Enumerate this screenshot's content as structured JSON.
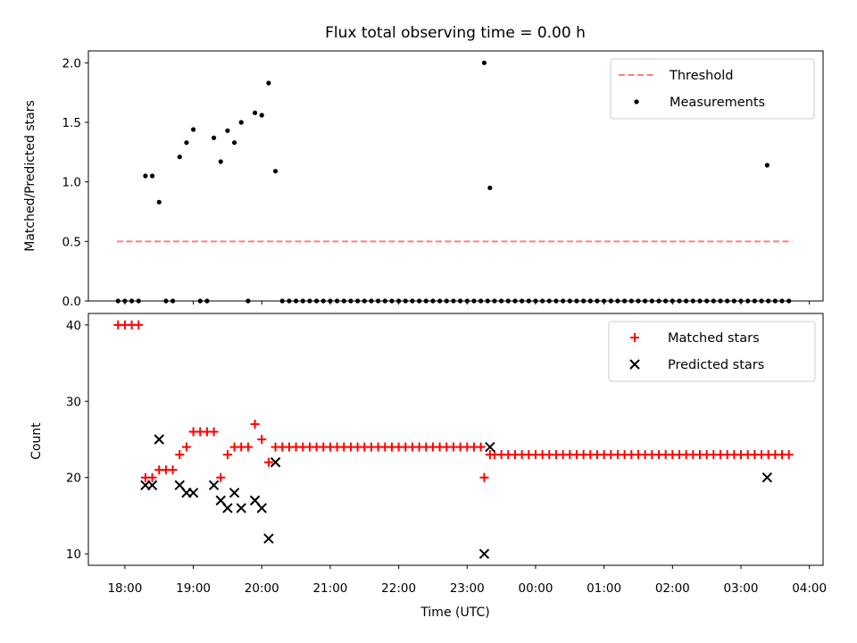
{
  "chart_data": [
    {
      "type": "scatter",
      "title": "Flux total observing time = 0.00 h",
      "xlabel": "",
      "ylabel": "Matched/Predicted stars",
      "xlim": [
        "17:28",
        "04:12"
      ],
      "ylim": [
        0,
        2.1
      ],
      "yticks": [
        0.0,
        0.5,
        1.0,
        1.5,
        2.0
      ],
      "grid": false,
      "legend_position": "top-right",
      "series": [
        {
          "name": "Threshold",
          "kind": "line",
          "style": "dashed",
          "color": "#ff7f7f",
          "points": [
            {
              "x": "17:53",
              "y": 0.5
            },
            {
              "x": "03:45",
              "y": 0.5
            }
          ]
        },
        {
          "name": "Measurements",
          "kind": "scatter",
          "marker": "dot",
          "color": "#000000",
          "points": [
            {
              "x": "17:54",
              "y": 0
            },
            {
              "x": "18:00",
              "y": 0
            },
            {
              "x": "18:06",
              "y": 0
            },
            {
              "x": "18:12",
              "y": 0
            },
            {
              "x": "18:18",
              "y": 1.05
            },
            {
              "x": "18:24",
              "y": 1.05
            },
            {
              "x": "18:30",
              "y": 0.83
            },
            {
              "x": "18:36",
              "y": 0
            },
            {
              "x": "18:42",
              "y": 0
            },
            {
              "x": "18:48",
              "y": 1.21
            },
            {
              "x": "18:54",
              "y": 1.33
            },
            {
              "x": "19:00",
              "y": 1.44
            },
            {
              "x": "19:06",
              "y": 0
            },
            {
              "x": "19:12",
              "y": 0
            },
            {
              "x": "19:18",
              "y": 1.37
            },
            {
              "x": "19:24",
              "y": 1.17
            },
            {
              "x": "19:30",
              "y": 1.43
            },
            {
              "x": "19:36",
              "y": 1.33
            },
            {
              "x": "19:42",
              "y": 1.5
            },
            {
              "x": "19:48",
              "y": 0
            },
            {
              "x": "19:54",
              "y": 1.58
            },
            {
              "x": "20:00",
              "y": 1.56
            },
            {
              "x": "20:06",
              "y": 1.83
            },
            {
              "x": "20:12",
              "y": 1.09
            },
            {
              "x": "20:18",
              "y": 0
            },
            {
              "x": "20:24",
              "y": 0
            },
            {
              "x": "20:30",
              "y": 0
            },
            {
              "x": "20:36",
              "y": 0
            },
            {
              "x": "20:42",
              "y": 0
            },
            {
              "x": "20:48",
              "y": 0
            },
            {
              "x": "20:54",
              "y": 0
            },
            {
              "x": "21:00",
              "y": 0
            },
            {
              "x": "21:06",
              "y": 0
            },
            {
              "x": "21:12",
              "y": 0
            },
            {
              "x": "21:18",
              "y": 0
            },
            {
              "x": "21:24",
              "y": 0
            },
            {
              "x": "21:30",
              "y": 0
            },
            {
              "x": "21:36",
              "y": 0
            },
            {
              "x": "21:42",
              "y": 0
            },
            {
              "x": "21:48",
              "y": 0
            },
            {
              "x": "21:54",
              "y": 0
            },
            {
              "x": "22:00",
              "y": 0
            },
            {
              "x": "22:06",
              "y": 0
            },
            {
              "x": "22:12",
              "y": 0
            },
            {
              "x": "22:18",
              "y": 0
            },
            {
              "x": "22:24",
              "y": 0
            },
            {
              "x": "22:30",
              "y": 0
            },
            {
              "x": "22:36",
              "y": 0
            },
            {
              "x": "22:42",
              "y": 0
            },
            {
              "x": "22:48",
              "y": 0
            },
            {
              "x": "22:54",
              "y": 0
            },
            {
              "x": "23:00",
              "y": 0
            },
            {
              "x": "23:06",
              "y": 0
            },
            {
              "x": "23:12",
              "y": 0
            },
            {
              "x": "23:18",
              "y": 0
            },
            {
              "x": "23:24",
              "y": 0
            },
            {
              "x": "23:30",
              "y": 0
            },
            {
              "x": "23:36",
              "y": 0
            },
            {
              "x": "23:42",
              "y": 0
            },
            {
              "x": "23:48",
              "y": 0
            },
            {
              "x": "23:54",
              "y": 0
            },
            {
              "x": "00:00",
              "y": 0
            },
            {
              "x": "00:06",
              "y": 0
            },
            {
              "x": "00:12",
              "y": 0
            },
            {
              "x": "00:18",
              "y": 0
            },
            {
              "x": "00:24",
              "y": 0
            },
            {
              "x": "00:30",
              "y": 0
            },
            {
              "x": "00:36",
              "y": 0
            },
            {
              "x": "00:42",
              "y": 0
            },
            {
              "x": "00:48",
              "y": 0
            },
            {
              "x": "00:54",
              "y": 0
            },
            {
              "x": "01:00",
              "y": 0
            },
            {
              "x": "01:06",
              "y": 0
            },
            {
              "x": "01:12",
              "y": 0
            },
            {
              "x": "01:18",
              "y": 0
            },
            {
              "x": "01:24",
              "y": 0
            },
            {
              "x": "01:30",
              "y": 0
            },
            {
              "x": "01:36",
              "y": 0
            },
            {
              "x": "01:42",
              "y": 0
            },
            {
              "x": "01:48",
              "y": 0
            },
            {
              "x": "01:54",
              "y": 0
            },
            {
              "x": "02:00",
              "y": 0
            },
            {
              "x": "02:06",
              "y": 0
            },
            {
              "x": "02:12",
              "y": 0
            },
            {
              "x": "02:18",
              "y": 0
            },
            {
              "x": "02:24",
              "y": 0
            },
            {
              "x": "02:30",
              "y": 0
            },
            {
              "x": "02:36",
              "y": 0
            },
            {
              "x": "02:42",
              "y": 0
            },
            {
              "x": "02:48",
              "y": 0
            },
            {
              "x": "02:54",
              "y": 0
            },
            {
              "x": "03:00",
              "y": 0
            },
            {
              "x": "03:06",
              "y": 0
            },
            {
              "x": "03:12",
              "y": 0
            },
            {
              "x": "03:18",
              "y": 0
            },
            {
              "x": "03:24",
              "y": 0
            },
            {
              "x": "03:30",
              "y": 0
            },
            {
              "x": "03:36",
              "y": 0
            },
            {
              "x": "03:42",
              "y": 0
            },
            {
              "x": "23:15",
              "y": 2.0
            },
            {
              "x": "23:20",
              "y": 0.95
            },
            {
              "x": "03:23",
              "y": 1.14
            }
          ]
        }
      ]
    },
    {
      "type": "scatter",
      "title": "",
      "xlabel": "Time (UTC)",
      "ylabel": "Count",
      "xlim": [
        "17:28",
        "04:12"
      ],
      "ylim": [
        8.5,
        41.5
      ],
      "yticks": [
        10,
        20,
        30,
        40
      ],
      "xticks": [
        "18:00",
        "19:00",
        "20:00",
        "21:00",
        "22:00",
        "23:00",
        "00:00",
        "01:00",
        "02:00",
        "03:00",
        "04:00"
      ],
      "grid": false,
      "legend_position": "top-right",
      "series": [
        {
          "name": "Matched stars",
          "kind": "scatter",
          "marker": "plus",
          "color": "#ff0000",
          "points": [
            {
              "x": "17:54",
              "y": 40
            },
            {
              "x": "18:00",
              "y": 40
            },
            {
              "x": "18:06",
              "y": 40
            },
            {
              "x": "18:12",
              "y": 40
            },
            {
              "x": "18:18",
              "y": 20
            },
            {
              "x": "18:24",
              "y": 20
            },
            {
              "x": "18:30",
              "y": 21
            },
            {
              "x": "18:36",
              "y": 21
            },
            {
              "x": "18:42",
              "y": 21
            },
            {
              "x": "18:48",
              "y": 23
            },
            {
              "x": "18:54",
              "y": 24
            },
            {
              "x": "19:00",
              "y": 26
            },
            {
              "x": "19:06",
              "y": 26
            },
            {
              "x": "19:12",
              "y": 26
            },
            {
              "x": "19:18",
              "y": 26
            },
            {
              "x": "19:24",
              "y": 20
            },
            {
              "x": "19:30",
              "y": 23
            },
            {
              "x": "19:36",
              "y": 24
            },
            {
              "x": "19:42",
              "y": 24
            },
            {
              "x": "19:48",
              "y": 24
            },
            {
              "x": "19:54",
              "y": 27
            },
            {
              "x": "20:00",
              "y": 25
            },
            {
              "x": "20:06",
              "y": 22
            },
            {
              "x": "20:12",
              "y": 24
            },
            {
              "x": "20:18",
              "y": 24
            },
            {
              "x": "20:24",
              "y": 24
            },
            {
              "x": "20:30",
              "y": 24
            },
            {
              "x": "20:36",
              "y": 24
            },
            {
              "x": "20:42",
              "y": 24
            },
            {
              "x": "20:48",
              "y": 24
            },
            {
              "x": "20:54",
              "y": 24
            },
            {
              "x": "21:00",
              "y": 24
            },
            {
              "x": "21:06",
              "y": 24
            },
            {
              "x": "21:12",
              "y": 24
            },
            {
              "x": "21:18",
              "y": 24
            },
            {
              "x": "21:24",
              "y": 24
            },
            {
              "x": "21:30",
              "y": 24
            },
            {
              "x": "21:36",
              "y": 24
            },
            {
              "x": "21:42",
              "y": 24
            },
            {
              "x": "21:48",
              "y": 24
            },
            {
              "x": "21:54",
              "y": 24
            },
            {
              "x": "22:00",
              "y": 24
            },
            {
              "x": "22:06",
              "y": 24
            },
            {
              "x": "22:12",
              "y": 24
            },
            {
              "x": "22:18",
              "y": 24
            },
            {
              "x": "22:24",
              "y": 24
            },
            {
              "x": "22:30",
              "y": 24
            },
            {
              "x": "22:36",
              "y": 24
            },
            {
              "x": "22:42",
              "y": 24
            },
            {
              "x": "22:48",
              "y": 24
            },
            {
              "x": "22:54",
              "y": 24
            },
            {
              "x": "23:00",
              "y": 24
            },
            {
              "x": "23:06",
              "y": 24
            },
            {
              "x": "23:12",
              "y": 24
            },
            {
              "x": "23:15",
              "y": 20
            },
            {
              "x": "23:20",
              "y": 23
            },
            {
              "x": "23:24",
              "y": 23
            },
            {
              "x": "23:30",
              "y": 23
            },
            {
              "x": "23:36",
              "y": 23
            },
            {
              "x": "23:42",
              "y": 23
            },
            {
              "x": "23:48",
              "y": 23
            },
            {
              "x": "23:54",
              "y": 23
            },
            {
              "x": "00:00",
              "y": 23
            },
            {
              "x": "00:06",
              "y": 23
            },
            {
              "x": "00:12",
              "y": 23
            },
            {
              "x": "00:18",
              "y": 23
            },
            {
              "x": "00:24",
              "y": 23
            },
            {
              "x": "00:30",
              "y": 23
            },
            {
              "x": "00:36",
              "y": 23
            },
            {
              "x": "00:42",
              "y": 23
            },
            {
              "x": "00:48",
              "y": 23
            },
            {
              "x": "00:54",
              "y": 23
            },
            {
              "x": "01:00",
              "y": 23
            },
            {
              "x": "01:06",
              "y": 23
            },
            {
              "x": "01:12",
              "y": 23
            },
            {
              "x": "01:18",
              "y": 23
            },
            {
              "x": "01:24",
              "y": 23
            },
            {
              "x": "01:30",
              "y": 23
            },
            {
              "x": "01:36",
              "y": 23
            },
            {
              "x": "01:42",
              "y": 23
            },
            {
              "x": "01:48",
              "y": 23
            },
            {
              "x": "01:54",
              "y": 23
            },
            {
              "x": "02:00",
              "y": 23
            },
            {
              "x": "02:06",
              "y": 23
            },
            {
              "x": "02:12",
              "y": 23
            },
            {
              "x": "02:18",
              "y": 23
            },
            {
              "x": "02:24",
              "y": 23
            },
            {
              "x": "02:30",
              "y": 23
            },
            {
              "x": "02:36",
              "y": 23
            },
            {
              "x": "02:42",
              "y": 23
            },
            {
              "x": "02:48",
              "y": 23
            },
            {
              "x": "02:54",
              "y": 23
            },
            {
              "x": "03:00",
              "y": 23
            },
            {
              "x": "03:06",
              "y": 23
            },
            {
              "x": "03:12",
              "y": 23
            },
            {
              "x": "03:18",
              "y": 23
            },
            {
              "x": "03:24",
              "y": 23
            },
            {
              "x": "03:30",
              "y": 23
            },
            {
              "x": "03:36",
              "y": 23
            },
            {
              "x": "03:42",
              "y": 23
            }
          ]
        },
        {
          "name": "Predicted stars",
          "kind": "scatter",
          "marker": "x",
          "color": "#000000",
          "points": [
            {
              "x": "18:18",
              "y": 19
            },
            {
              "x": "18:24",
              "y": 19
            },
            {
              "x": "18:30",
              "y": 25
            },
            {
              "x": "18:48",
              "y": 19
            },
            {
              "x": "18:54",
              "y": 18
            },
            {
              "x": "19:00",
              "y": 18
            },
            {
              "x": "19:18",
              "y": 19
            },
            {
              "x": "19:24",
              "y": 17
            },
            {
              "x": "19:30",
              "y": 16
            },
            {
              "x": "19:36",
              "y": 18
            },
            {
              "x": "19:42",
              "y": 16
            },
            {
              "x": "19:54",
              "y": 17
            },
            {
              "x": "20:00",
              "y": 16
            },
            {
              "x": "20:06",
              "y": 12
            },
            {
              "x": "20:12",
              "y": 22
            },
            {
              "x": "23:15",
              "y": 10
            },
            {
              "x": "23:20",
              "y": 24
            },
            {
              "x": "03:23",
              "y": 20
            }
          ]
        }
      ]
    }
  ]
}
